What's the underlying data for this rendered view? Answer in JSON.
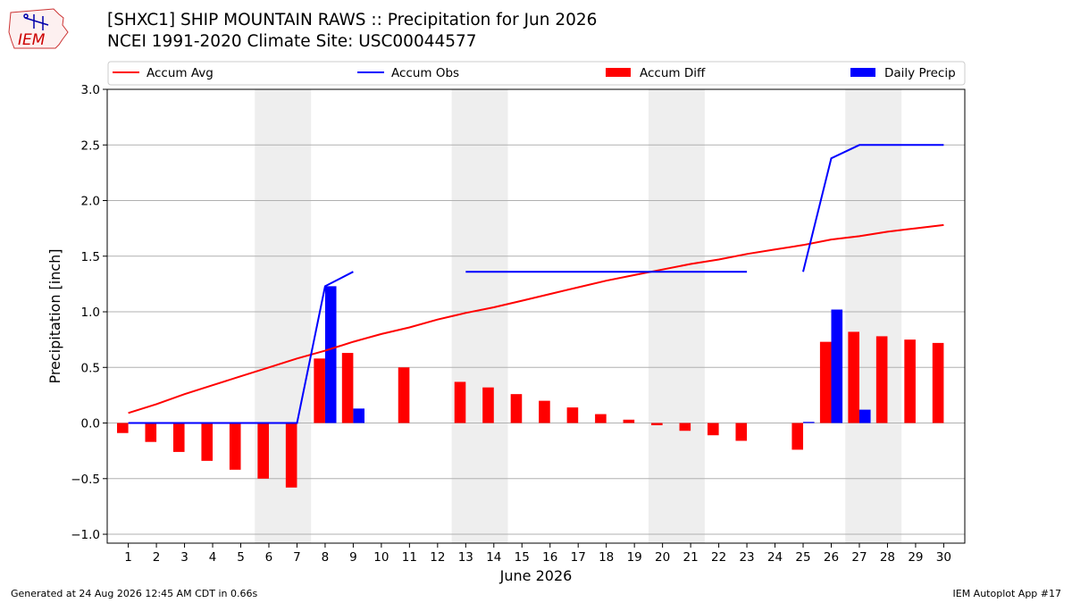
{
  "header": {
    "title_line1": "[SHXC1] SHIP MOUNTAIN RAWS :: Precipitation for Jun 2026",
    "title_line2": "NCEI 1991-2020 Climate Site: USC00044577",
    "logo_text": "IEM"
  },
  "footer": {
    "generated": "Generated at 24 Aug 2026 12:45 AM CDT in 0.66s",
    "app": "IEM Autoplot App #17"
  },
  "colors": {
    "accum_avg": "#ff0000",
    "accum_obs": "#0000ff",
    "accum_diff": "#ff0000",
    "daily_precip": "#0000ff",
    "weekend_shade": "#eeeeee",
    "grid": "#b0b0b0"
  },
  "chart_data": {
    "type": "bar",
    "xlabel": "June 2026",
    "ylabel": "Precipitation [inch]",
    "ylim": [
      -1.08,
      3.0
    ],
    "yticks": [
      -1.0,
      -0.5,
      0.0,
      0.5,
      1.0,
      1.5,
      2.0,
      2.5,
      3.0
    ],
    "ytick_labels": [
      "−1.0",
      "−0.5",
      "0.0",
      "0.5",
      "1.0",
      "1.5",
      "2.0",
      "2.5",
      "3.0"
    ],
    "x": [
      1,
      2,
      3,
      4,
      5,
      6,
      7,
      8,
      9,
      10,
      11,
      12,
      13,
      14,
      15,
      16,
      17,
      18,
      19,
      20,
      21,
      22,
      23,
      24,
      25,
      26,
      27,
      28,
      29,
      30
    ],
    "weekend_shading": [
      [
        6,
        7
      ],
      [
        13,
        14
      ],
      [
        20,
        21
      ],
      [
        27,
        28
      ]
    ],
    "grid": "horizontal",
    "legend_position": "top",
    "series": [
      {
        "name": "Accum Avg",
        "kind": "line",
        "values": [
          0.09,
          0.17,
          0.26,
          0.34,
          0.42,
          0.5,
          0.58,
          0.65,
          0.73,
          0.8,
          0.86,
          0.93,
          0.99,
          1.04,
          1.1,
          1.16,
          1.22,
          1.28,
          1.33,
          1.38,
          1.43,
          1.47,
          1.52,
          1.56,
          1.6,
          1.65,
          1.68,
          1.72,
          1.75,
          1.78
        ]
      },
      {
        "name": "Accum Obs",
        "kind": "line",
        "values": [
          0.0,
          0.0,
          0.0,
          0.0,
          0.0,
          0.0,
          0.0,
          1.23,
          1.36,
          null,
          null,
          null,
          1.36,
          1.36,
          1.36,
          1.36,
          1.36,
          1.36,
          1.36,
          1.36,
          1.36,
          1.36,
          1.36,
          null,
          1.36,
          2.38,
          2.5,
          2.5,
          2.5,
          2.5
        ]
      },
      {
        "name": "Accum Diff",
        "kind": "bar",
        "values": [
          -0.09,
          -0.17,
          -0.26,
          -0.34,
          -0.42,
          -0.5,
          -0.58,
          0.58,
          0.63,
          null,
          0.5,
          null,
          0.37,
          0.32,
          0.26,
          0.2,
          0.14,
          0.08,
          0.03,
          -0.02,
          -0.07,
          -0.11,
          -0.16,
          null,
          -0.24,
          0.73,
          0.82,
          0.78,
          0.75,
          0.72
        ]
      },
      {
        "name": "Daily Precip",
        "kind": "bar",
        "values": [
          0,
          0,
          0,
          0,
          0,
          0,
          0,
          1.23,
          0.13,
          null,
          null,
          null,
          0,
          0,
          0,
          0,
          0,
          0,
          0,
          0,
          0,
          0,
          0,
          null,
          0.01,
          1.02,
          0.12,
          0,
          0,
          0
        ]
      }
    ]
  }
}
